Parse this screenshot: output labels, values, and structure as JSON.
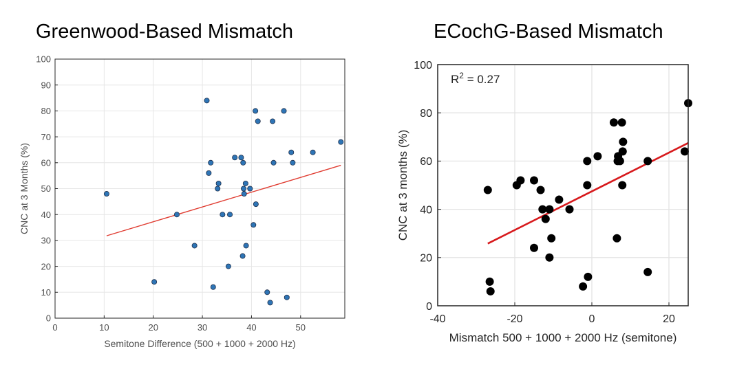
{
  "chart_data": [
    {
      "type": "scatter",
      "title": "Greenwood-Based Mismatch",
      "xlabel": "Semitone Difference (500 + 1000 + 2000 Hz)",
      "ylabel": "CNC at 3 Months (%)",
      "xlim": [
        0,
        59
      ],
      "ylim": [
        0,
        100
      ],
      "xticks": [
        0,
        10,
        20,
        30,
        40,
        50
      ],
      "yticks": [
        0,
        10,
        20,
        30,
        40,
        50,
        60,
        70,
        80,
        90,
        100
      ],
      "grid": true,
      "series": [
        {
          "points": [
            [
              10.5,
              48
            ],
            [
              20.2,
              14
            ],
            [
              24.8,
              40
            ],
            [
              28.4,
              28
            ],
            [
              30.9,
              84
            ],
            [
              31.3,
              56
            ],
            [
              31.7,
              60
            ],
            [
              32.2,
              12
            ],
            [
              33.1,
              50
            ],
            [
              33.3,
              52
            ],
            [
              34.1,
              40
            ],
            [
              35.3,
              20
            ],
            [
              35.6,
              40
            ],
            [
              36.6,
              62
            ],
            [
              37.9,
              62
            ],
            [
              38.2,
              24
            ],
            [
              38.3,
              60
            ],
            [
              38.4,
              50
            ],
            [
              38.5,
              48
            ],
            [
              38.8,
              52
            ],
            [
              38.9,
              28
            ],
            [
              39.7,
              50
            ],
            [
              40.4,
              36
            ],
            [
              40.8,
              80
            ],
            [
              40.9,
              44
            ],
            [
              41.3,
              76
            ],
            [
              43.2,
              10
            ],
            [
              43.8,
              6
            ],
            [
              44.3,
              76
            ],
            [
              44.5,
              60
            ],
            [
              46.6,
              80
            ],
            [
              47.2,
              8
            ],
            [
              48.1,
              64
            ],
            [
              48.4,
              60
            ],
            [
              52.5,
              64
            ],
            [
              58.2,
              68
            ]
          ],
          "color": "#2e75b6"
        }
      ],
      "fit_line": {
        "x": [
          10.5,
          58.2
        ],
        "y": [
          31.8,
          59.0
        ],
        "color": "#e03c31"
      }
    },
    {
      "type": "scatter",
      "title": "ECochG-Based Mismatch",
      "xlabel": "Mismatch 500 + 1000 + 2000 Hz (semitone)",
      "ylabel": "CNC at 3 months (%)",
      "xlim": [
        -40,
        25
      ],
      "ylim": [
        0,
        100
      ],
      "xticks": [
        -40,
        -20,
        0,
        20
      ],
      "yticks": [
        0,
        20,
        40,
        60,
        80,
        100
      ],
      "grid": true,
      "annotation": {
        "text": "R",
        "sup": "2",
        "rest": " = 0.27"
      },
      "series": [
        {
          "points": [
            [
              -27,
              48
            ],
            [
              -26.5,
              10
            ],
            [
              -26.3,
              6
            ],
            [
              -19.5,
              50
            ],
            [
              -18.5,
              52
            ],
            [
              -15,
              52
            ],
            [
              -15,
              24
            ],
            [
              -13.3,
              48
            ],
            [
              -12.8,
              40
            ],
            [
              -12,
              36
            ],
            [
              -11,
              40
            ],
            [
              -11,
              20
            ],
            [
              -10.5,
              28
            ],
            [
              -8.5,
              44
            ],
            [
              -5.8,
              40
            ],
            [
              -2.3,
              8
            ],
            [
              -1.2,
              60
            ],
            [
              -1.2,
              50
            ],
            [
              -1,
              12
            ],
            [
              1.5,
              62
            ],
            [
              5.7,
              76
            ],
            [
              6.5,
              28
            ],
            [
              6.7,
              60
            ],
            [
              6.8,
              62
            ],
            [
              7.3,
              60
            ],
            [
              7.8,
              76
            ],
            [
              7.9,
              50
            ],
            [
              8,
              64
            ],
            [
              8.1,
              68
            ],
            [
              14.5,
              60
            ],
            [
              14.5,
              14
            ],
            [
              24.1,
              64
            ],
            [
              25,
              84
            ]
          ],
          "color": "#000000"
        }
      ],
      "fit_line": {
        "x": [
          -27,
          25
        ],
        "y": [
          25.8,
          67.5
        ],
        "color": "#d7191c"
      }
    }
  ]
}
